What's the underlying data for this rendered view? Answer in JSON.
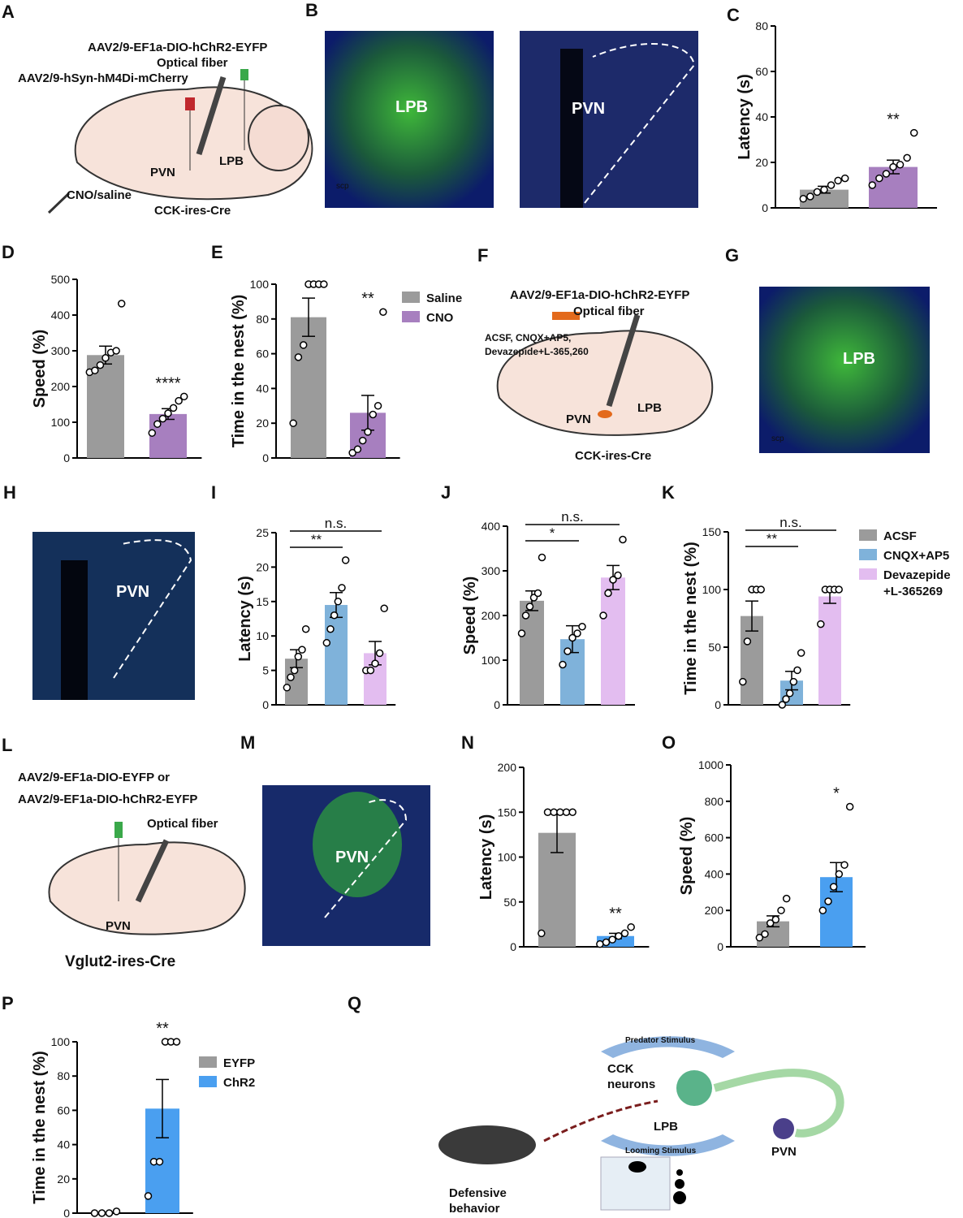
{
  "chart_data": [
    {
      "type": "bar",
      "panel": "C",
      "ylabel": "Latency (s)",
      "ylim": [
        0,
        80
      ],
      "yticks": [
        0,
        20,
        40,
        60,
        80
      ],
      "colors": [
        "#9b9b9b",
        "#a77fbf"
      ],
      "values": [
        8,
        18
      ],
      "errors": [
        1.5,
        3
      ],
      "points": [
        [
          4,
          5,
          7,
          8,
          10,
          12,
          13
        ],
        [
          10,
          13,
          15,
          18,
          19,
          22,
          33
        ]
      ],
      "significance": [
        null,
        "**"
      ]
    },
    {
      "type": "bar",
      "panel": "D",
      "ylabel": "Speed (%)",
      "ylim": [
        0,
        500
      ],
      "yticks": [
        0,
        100,
        200,
        300,
        400,
        500
      ],
      "colors": [
        "#9b9b9b",
        "#a77fbf"
      ],
      "values": [
        288,
        123
      ],
      "errors": [
        25,
        15
      ],
      "points": [
        [
          240,
          245,
          260,
          280,
          295,
          300,
          432
        ],
        [
          70,
          95,
          110,
          125,
          140,
          160,
          172
        ]
      ],
      "significance": [
        null,
        "****"
      ]
    },
    {
      "type": "bar",
      "panel": "E",
      "ylabel": "Time in the nest (%)",
      "ylim": [
        0,
        100
      ],
      "yticks": [
        0,
        20,
        40,
        60,
        80,
        100
      ],
      "colors": [
        "#9b9b9b",
        "#a77fbf"
      ],
      "values": [
        81,
        26
      ],
      "errors": [
        11,
        10
      ],
      "points": [
        [
          20,
          58,
          65,
          100,
          100,
          100,
          100
        ],
        [
          3,
          5,
          10,
          15,
          25,
          30,
          84
        ]
      ],
      "significance": [
        null,
        "**"
      ],
      "legend": [
        [
          "Saline"
        ],
        [
          "CNO"
        ]
      ]
    },
    {
      "type": "bar",
      "panel": "I",
      "ylabel": "Latency (s)",
      "ylim": [
        0,
        25
      ],
      "yticks": [
        0,
        5,
        10,
        15,
        20,
        25
      ],
      "colors": [
        "#9b9b9b",
        "#7fb2da",
        "#e3bdf0"
      ],
      "values": [
        6.7,
        14.5,
        7.5
      ],
      "errors": [
        1.3,
        1.8,
        1.7
      ],
      "points": [
        [
          2.5,
          4,
          5,
          7,
          8,
          11
        ],
        [
          9,
          11,
          13,
          15,
          17,
          21
        ],
        [
          5,
          5,
          6,
          7.5,
          14
        ]
      ],
      "comparisons": [
        "**",
        "n.s."
      ]
    },
    {
      "type": "bar",
      "panel": "J",
      "ylabel": "Speed (%)",
      "ylim": [
        0,
        400
      ],
      "yticks": [
        0,
        100,
        200,
        300,
        400
      ],
      "colors": [
        "#9b9b9b",
        "#7fb2da",
        "#e3bdf0"
      ],
      "values": [
        233,
        147,
        285
      ],
      "errors": [
        22,
        30,
        27
      ],
      "points": [
        [
          160,
          200,
          220,
          240,
          250,
          330
        ],
        [
          90,
          120,
          150,
          160,
          175
        ],
        [
          200,
          250,
          280,
          290,
          370
        ]
      ],
      "comparisons": [
        "*",
        "n.s."
      ]
    },
    {
      "type": "bar",
      "panel": "K",
      "ylabel": "Time in the nest (%)",
      "ylim": [
        0,
        150
      ],
      "yticks": [
        0,
        50,
        100,
        150
      ],
      "colors": [
        "#9b9b9b",
        "#7fb2da",
        "#e3bdf0"
      ],
      "values": [
        77,
        21,
        94
      ],
      "errors": [
        13,
        8,
        6
      ],
      "points": [
        [
          20,
          55,
          100,
          100,
          100
        ],
        [
          0,
          5,
          10,
          20,
          30,
          45
        ],
        [
          70,
          100,
          100,
          100,
          100
        ]
      ],
      "comparisons": [
        "**",
        "n.s."
      ],
      "legend": [
        [
          "ACSF"
        ],
        [
          "CNQX+AP5"
        ],
        [
          "Devazepide",
          "+L-365269"
        ]
      ]
    },
    {
      "type": "bar",
      "panel": "N",
      "ylabel": "Latency (s)",
      "ylim": [
        0,
        200
      ],
      "yticks": [
        0,
        50,
        100,
        150,
        200
      ],
      "colors": [
        "#9b9b9b",
        "#4a9ff0"
      ],
      "values": [
        127,
        12
      ],
      "errors": [
        22,
        3
      ],
      "points": [
        [
          15,
          150,
          150,
          150,
          150,
          150
        ],
        [
          3,
          5,
          8,
          12,
          15,
          22
        ]
      ],
      "significance": [
        null,
        "**"
      ]
    },
    {
      "type": "bar",
      "panel": "O",
      "ylabel": "Speed (%)",
      "ylim": [
        0,
        1000
      ],
      "yticks": [
        0,
        200,
        400,
        600,
        800,
        1000
      ],
      "colors": [
        "#9b9b9b",
        "#4a9ff0"
      ],
      "values": [
        140,
        383
      ],
      "errors": [
        30,
        80
      ],
      "points": [
        [
          50,
          70,
          130,
          150,
          200,
          265
        ],
        [
          200,
          250,
          330,
          400,
          450,
          770
        ]
      ],
      "significance": [
        null,
        "*"
      ]
    },
    {
      "type": "bar",
      "panel": "P",
      "ylabel": "Time in the nest (%)",
      "ylim": [
        0,
        100
      ],
      "yticks": [
        0,
        20,
        40,
        60,
        80,
        100
      ],
      "colors": [
        "#9b9b9b",
        "#4a9ff0"
      ],
      "values": [
        0,
        61
      ],
      "errors": [
        0,
        17
      ],
      "points": [
        [
          0,
          0,
          0,
          1
        ],
        [
          10,
          30,
          30,
          100,
          100,
          100
        ]
      ],
      "significance": [
        null,
        "**"
      ],
      "legend": [
        [
          "EYFP"
        ],
        [
          "ChR2"
        ]
      ]
    }
  ],
  "diagrams": {
    "A": {
      "letter": "A",
      "labels": [
        "AAV2/9-EF1a-DIO-hChR2-EYFP",
        "Optical fiber",
        "AAV2/9-hSyn-hM4Di-mCherry",
        "PVN",
        "LPB",
        "CNO/saline",
        "CCK-ires-Cre"
      ]
    },
    "F": {
      "letter": "F",
      "labels": [
        "AAV2/9-EF1a-DIO-hChR2-EYFP",
        "Optical fiber",
        "ACSF, CNQX+AP5,",
        "Devazepide+L-365,260",
        "PVN",
        "LPB",
        "CCK-ires-Cre"
      ]
    },
    "L": {
      "letter": "L",
      "labels": [
        "AAV2/9-EF1a-DIO-EYFP or",
        "AAV2/9-EF1a-DIO-hChR2-EYFP",
        "Optical fiber",
        "PVN",
        "Vglut2-ires-Cre"
      ]
    },
    "Q": {
      "letter": "Q",
      "labels": [
        "Predator Stimulus",
        "CCK",
        "neurons",
        "LPB",
        "PVN",
        "Looming Stimulus",
        "Defensive",
        "behavior"
      ]
    }
  },
  "images": {
    "B": {
      "letter": "B",
      "labels": [
        "LPB",
        "scp",
        "PVN"
      ]
    },
    "G": {
      "letter": "G",
      "labels": [
        "LPB",
        "scp"
      ]
    },
    "H": {
      "letter": "H",
      "labels": [
        "PVN"
      ]
    },
    "M": {
      "letter": "M",
      "labels": [
        "PVN"
      ]
    }
  }
}
